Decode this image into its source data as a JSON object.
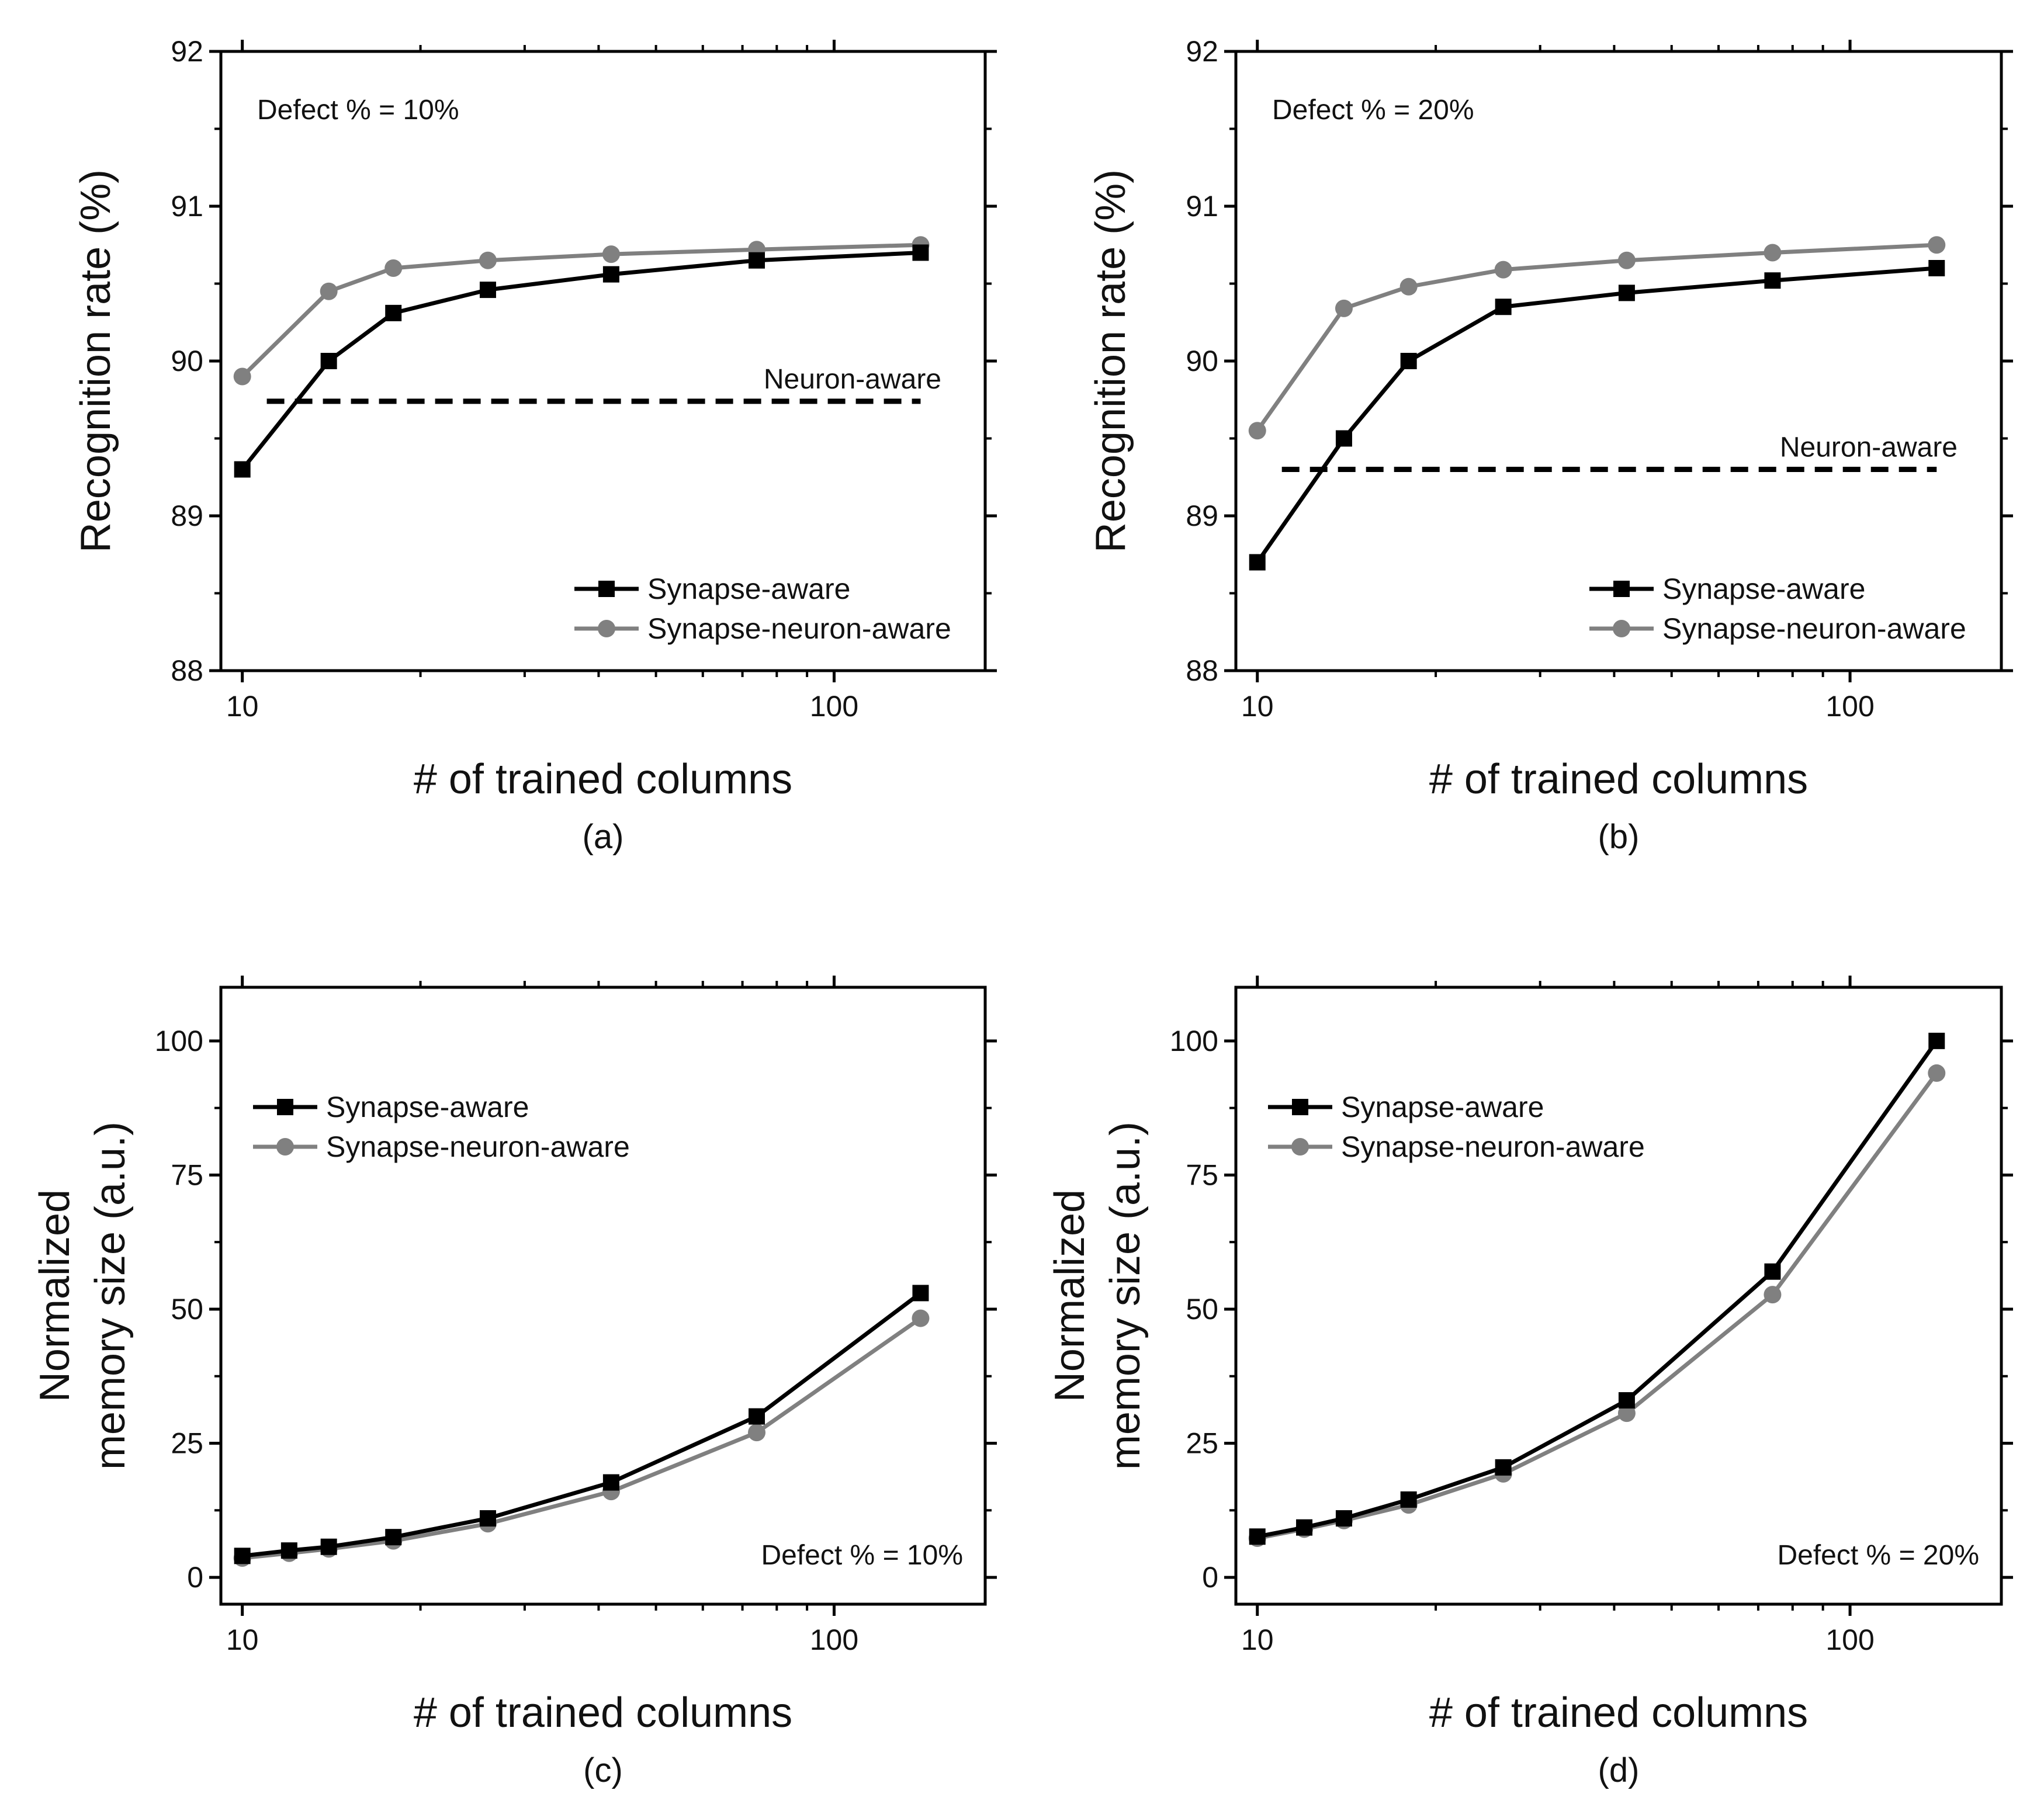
{
  "colors": {
    "synapse": "#000000",
    "synapse_neuron": "#808080",
    "neuron": "#000000"
  },
  "chart_data": [
    {
      "type": "line",
      "panel_label": "(a)",
      "xscale": "log",
      "xlim": [
        9.2,
        180
      ],
      "ylim": [
        88,
        92
      ],
      "xticks": [
        10,
        100
      ],
      "xtick_labels": [
        "10",
        "100"
      ],
      "yticks": [
        88,
        89,
        90,
        91,
        92
      ],
      "ytick_labels": [
        "88",
        "89",
        "90",
        "91",
        "92"
      ],
      "xlabel": "# of trained columns",
      "ylabel_lines": [
        "Recognition rate (%)"
      ],
      "annotation": "Defect % = 10%",
      "annotation_pos": "top-left",
      "legend_pos": "bottom-right",
      "series": [
        {
          "name": "Synapse-aware",
          "marker": "square",
          "color": "#000000",
          "x": [
            10,
            14,
            18,
            26,
            42,
            74,
            140
          ],
          "y": [
            89.3,
            90.0,
            90.31,
            90.46,
            90.56,
            90.65,
            90.7
          ]
        },
        {
          "name": "Synapse-neuron-aware",
          "marker": "circle",
          "color": "#808080",
          "x": [
            10,
            14,
            18,
            26,
            42,
            74,
            140
          ],
          "y": [
            89.9,
            90.45,
            90.6,
            90.65,
            90.69,
            90.72,
            90.75
          ]
        }
      ],
      "reference": {
        "name": "Neuron-aware",
        "y": 89.74,
        "x_range": [
          11,
          140
        ]
      }
    },
    {
      "type": "line",
      "panel_label": "(b)",
      "xscale": "log",
      "xlim": [
        9.2,
        180
      ],
      "ylim": [
        88,
        92
      ],
      "xticks": [
        10,
        100
      ],
      "xtick_labels": [
        "10",
        "100"
      ],
      "yticks": [
        88,
        89,
        90,
        91,
        92
      ],
      "ytick_labels": [
        "88",
        "89",
        "90",
        "91",
        "92"
      ],
      "xlabel": "# of trained columns",
      "ylabel_lines": [
        "Recognition rate (%)"
      ],
      "annotation": "Defect % = 20%",
      "annotation_pos": "top-left",
      "legend_pos": "bottom-right",
      "series": [
        {
          "name": "Synapse-aware",
          "marker": "square",
          "color": "#000000",
          "x": [
            10,
            14,
            18,
            26,
            42,
            74,
            140
          ],
          "y": [
            88.7,
            89.5,
            90.0,
            90.35,
            90.44,
            90.52,
            90.6
          ]
        },
        {
          "name": "Synapse-neuron-aware",
          "marker": "circle",
          "color": "#808080",
          "x": [
            10,
            14,
            18,
            26,
            42,
            74,
            140
          ],
          "y": [
            89.55,
            90.34,
            90.48,
            90.59,
            90.65,
            90.7,
            90.75
          ]
        }
      ],
      "reference": {
        "name": "Neuron-aware",
        "y": 89.3,
        "x_range": [
          11,
          140
        ]
      }
    },
    {
      "type": "line",
      "panel_label": "(c)",
      "xscale": "log",
      "xlim": [
        9.2,
        180
      ],
      "ylim": [
        -5,
        110
      ],
      "xticks": [
        10,
        100
      ],
      "xtick_labels": [
        "10",
        "100"
      ],
      "yticks": [
        0,
        25,
        50,
        75,
        100
      ],
      "ytick_labels": [
        "0",
        "25",
        "50",
        "75",
        "100"
      ],
      "xlabel": "# of trained columns",
      "ylabel_lines": [
        "Normalized",
        "memory size (a.u.)"
      ],
      "annotation": "Defect % = 10%",
      "annotation_pos": "bottom-right",
      "legend_pos": "top-left",
      "series": [
        {
          "name": "Synapse-aware",
          "marker": "square",
          "color": "#000000",
          "x": [
            10,
            12,
            14,
            18,
            26,
            42,
            74,
            140
          ],
          "y": [
            4,
            5,
            5.7,
            7.5,
            11,
            17.7,
            30,
            53
          ]
        },
        {
          "name": "Synapse-neuron-aware",
          "marker": "circle",
          "color": "#808080",
          "x": [
            10,
            12,
            14,
            18,
            26,
            42,
            74,
            140
          ],
          "y": [
            3.6,
            4.5,
            5.3,
            6.8,
            10,
            16,
            27,
            48.3
          ]
        }
      ]
    },
    {
      "type": "line",
      "panel_label": "(d)",
      "xscale": "log",
      "xlim": [
        9.2,
        180
      ],
      "ylim": [
        -5,
        110
      ],
      "xticks": [
        10,
        100
      ],
      "xtick_labels": [
        "10",
        "100"
      ],
      "yticks": [
        0,
        25,
        50,
        75,
        100
      ],
      "ytick_labels": [
        "0",
        "25",
        "50",
        "75",
        "100"
      ],
      "xlabel": "# of trained columns",
      "ylabel_lines": [
        "Normalized",
        "memory size (a.u.)"
      ],
      "annotation": "Defect % = 20%",
      "annotation_pos": "bottom-right",
      "legend_pos": "top-left",
      "series": [
        {
          "name": "Synapse-aware",
          "marker": "square",
          "color": "#000000",
          "x": [
            10,
            12,
            14,
            18,
            26,
            42,
            74,
            140
          ],
          "y": [
            7.6,
            9.3,
            11,
            14.5,
            20.5,
            33,
            57,
            100
          ]
        },
        {
          "name": "Synapse-neuron-aware",
          "marker": "circle",
          "color": "#808080",
          "x": [
            10,
            12,
            14,
            18,
            26,
            42,
            74,
            140
          ],
          "y": [
            7.3,
            9,
            10.6,
            13.5,
            19.3,
            30.6,
            52.7,
            94
          ]
        }
      ]
    }
  ]
}
